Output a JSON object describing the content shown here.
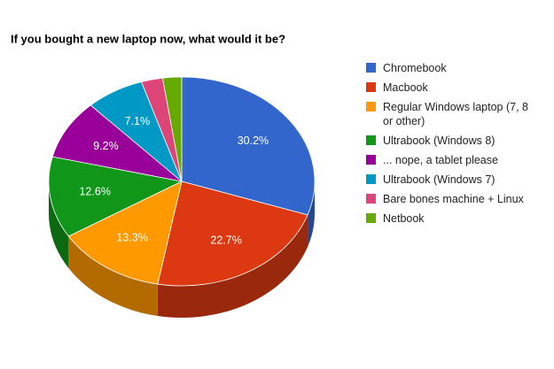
{
  "chart_data": {
    "type": "pie",
    "title": "If you bought a new laptop now, what would it be?",
    "categories": [
      "Chromebook",
      "Macbook",
      "Regular Windows laptop (7, 8 or other)",
      "Ultrabook (Windows 8)",
      "... nope, a tablet please",
      "Ultrabook (Windows 7)",
      "Bare bones machine + Linux",
      "Netbook"
    ],
    "values": [
      30.2,
      22.7,
      13.3,
      12.6,
      9.2,
      7.1,
      2.6,
      2.3
    ],
    "value_labels": [
      "30.2%",
      "22.7%",
      "13.3%",
      "12.6%",
      "9.2%",
      "7.1%",
      null,
      null
    ],
    "colors": [
      "#3366cc",
      "#dc3912",
      "#ff9900",
      "#109618",
      "#990099",
      "#0099c6",
      "#dd4477",
      "#66aa00"
    ],
    "legend": "right",
    "3d": true
  }
}
